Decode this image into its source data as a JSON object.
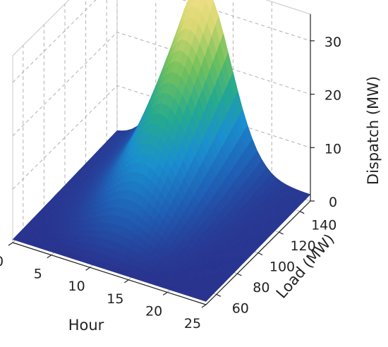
{
  "chart_data": {
    "type": "surface",
    "title": "",
    "x_axis": {
      "label": "Hour",
      "range": [
        0,
        25
      ],
      "ticks": [
        0,
        5,
        10,
        15,
        20,
        25
      ]
    },
    "y_axis": {
      "label": "Load (MW)",
      "range": [
        50,
        150
      ],
      "ticks": [
        60,
        80,
        100,
        120,
        140
      ]
    },
    "z_axis": {
      "label": "Dispatch (MW)",
      "range": [
        0,
        35
      ],
      "ticks": [
        0,
        10,
        20,
        30
      ]
    },
    "grid": true,
    "colormap": [
      "#2a2e8a",
      "#1f5fb5",
      "#1a8fcf",
      "#25aa8e",
      "#72c15c",
      "#d8d872",
      "#f6e08c"
    ],
    "surface": {
      "description_peak": "dispatch rises with load, peaking near hour 11",
      "peak_hour": 11,
      "peak_load": 150,
      "peak_value": 34,
      "samples": [
        {
          "hour": 0,
          "load": 150,
          "dispatch": 1
        },
        {
          "hour": 5,
          "load": 150,
          "dispatch": 6
        },
        {
          "hour": 11,
          "load": 150,
          "dispatch": 34
        },
        {
          "hour": 17,
          "load": 150,
          "dispatch": 18
        },
        {
          "hour": 25,
          "load": 150,
          "dispatch": 1
        },
        {
          "hour": 11,
          "load": 100,
          "dispatch": 11
        },
        {
          "hour": 11,
          "load": 50,
          "dispatch": 1
        }
      ]
    }
  }
}
